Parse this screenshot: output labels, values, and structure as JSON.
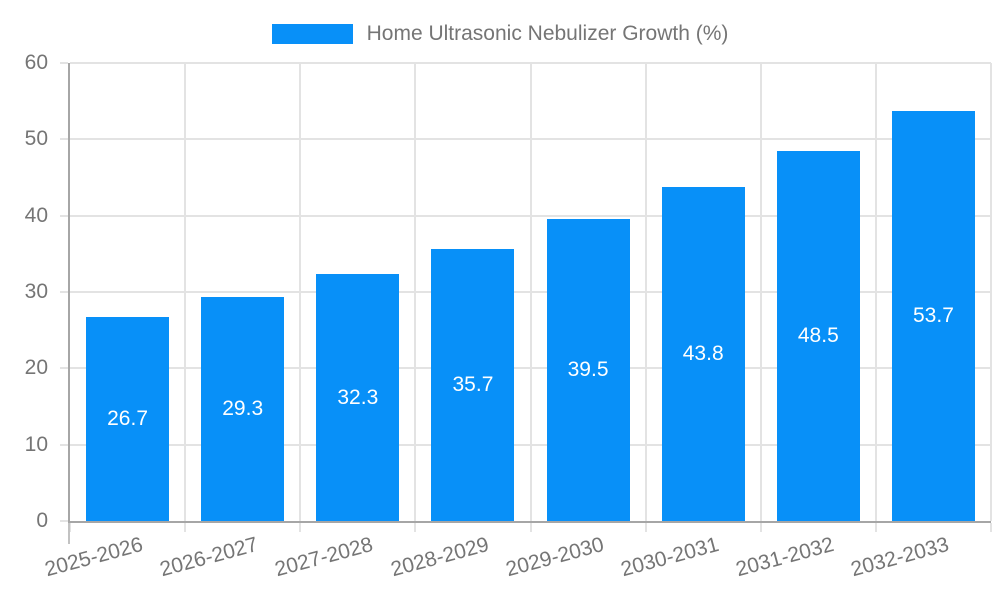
{
  "chart_data": {
    "type": "bar",
    "title": "Home Ultrasonic Nebulizer Growth (%)",
    "categories": [
      "2025-2026",
      "2026-2027",
      "2027-2028",
      "2028-2029",
      "2029-2030",
      "2030-2031",
      "2031-2032",
      "2032-2033"
    ],
    "values": [
      26.7,
      29.3,
      32.3,
      35.7,
      39.5,
      43.8,
      48.5,
      53.7
    ],
    "xlabel": "",
    "ylabel": "",
    "ylim": [
      0,
      60
    ],
    "yticks": [
      0,
      10,
      20,
      30,
      40,
      50,
      60
    ],
    "grid": true,
    "legend_position": "top",
    "colors": {
      "bar": "#0890f8",
      "grid": "#e3e3e3",
      "axis": "#a6a6a6",
      "tick_label": "#757575",
      "value_label": "#ffffff",
      "background": "#ffffff"
    }
  }
}
